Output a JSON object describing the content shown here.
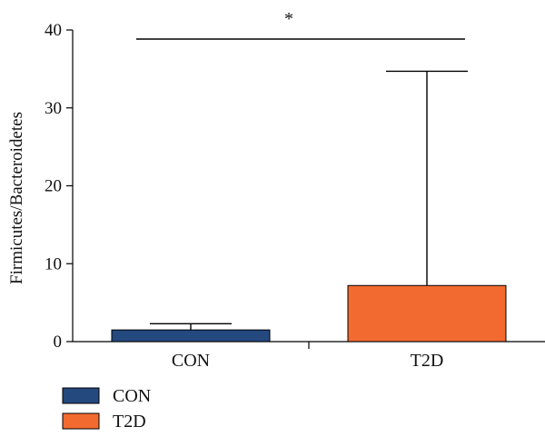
{
  "chart_data": {
    "type": "bar",
    "categories": [
      "CON",
      "T2D"
    ],
    "values": [
      1.5,
      7.2
    ],
    "error_upper": [
      2.3,
      34.7
    ],
    "colors": [
      "#24497f",
      "#f26a30"
    ],
    "ylabel": "Firmicutes/Bacteroidetes",
    "ylim": [
      0,
      40
    ],
    "yticks": [
      0,
      10,
      20,
      30,
      40
    ],
    "significance": {
      "label": "*",
      "between": [
        "CON",
        "T2D"
      ]
    },
    "legend": {
      "placement": "bottom-left",
      "entries": [
        {
          "label": "CON",
          "color": "#24497f"
        },
        {
          "label": "T2D",
          "color": "#f26a30"
        }
      ]
    },
    "grid": false
  }
}
